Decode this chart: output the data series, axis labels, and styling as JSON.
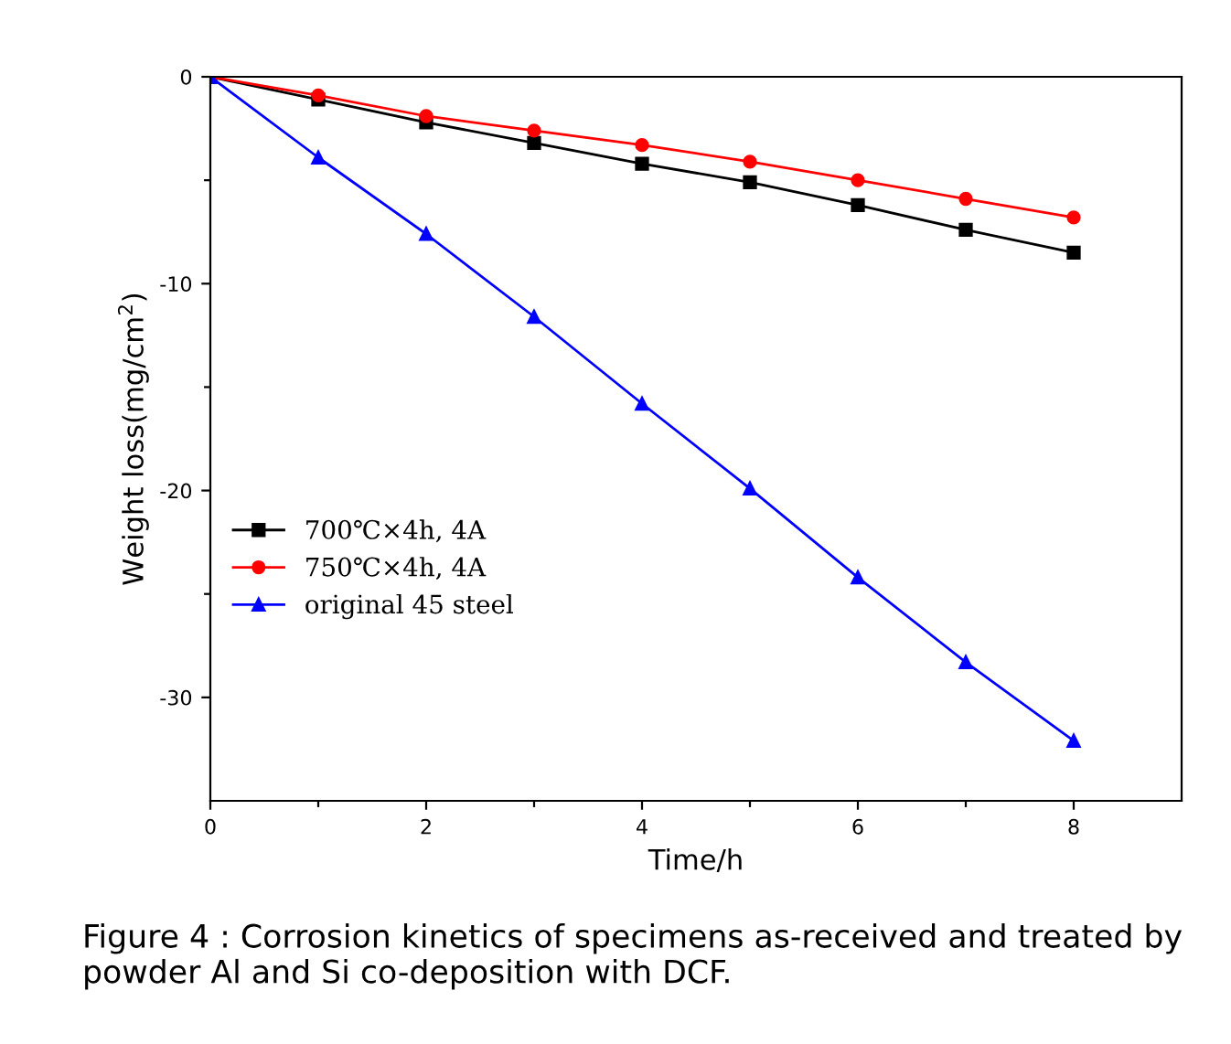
{
  "chart_data": {
    "type": "line",
    "xlabel": "Time/h",
    "ylabel": "Weight loss(mg/cm$^{2}$)",
    "x": [
      0,
      1,
      2,
      3,
      4,
      5,
      6,
      7,
      8
    ],
    "series": [
      {
        "name": "700℃×4h, 4A",
        "color": "#000000",
        "marker": "square",
        "values": [
          0,
          -1.1,
          -2.2,
          -3.2,
          -4.2,
          -5.1,
          -6.2,
          -7.4,
          -8.5
        ]
      },
      {
        "name": "750℃×4h, 4A",
        "color": "#ff0000",
        "marker": "circle",
        "values": [
          0,
          -0.9,
          -1.9,
          -2.6,
          -3.3,
          -4.1,
          -5.0,
          -5.9,
          -6.8
        ]
      },
      {
        "name": "original 45 steel",
        "color": "#0000ff",
        "marker": "triangle",
        "values": [
          0,
          -3.9,
          -7.6,
          -11.6,
          -15.8,
          -19.9,
          -24.2,
          -28.3,
          -32.1
        ]
      }
    ],
    "xlim": [
      0,
      9
    ],
    "ylim": [
      -35,
      0
    ],
    "xticks": [
      0,
      {
        "value": 1,
        "label": null
      },
      2,
      {
        "value": 3,
        "label": null
      },
      4,
      {
        "value": 5,
        "label": null
      },
      6,
      {
        "value": 7,
        "label": null
      },
      8
    ],
    "yticks": [
      0,
      {
        "value": -5,
        "label": null
      },
      -10,
      {
        "value": -15,
        "label": null
      },
      -20,
      {
        "value": -25,
        "label": null
      },
      -30
    ],
    "grid": false,
    "legend": "left",
    "line_style": "solid",
    "annotations": [
      "Figure 4 : Corrosion kinetics of specimens as-received and treated by powder Al and Si co-deposition with DCF."
    ]
  }
}
